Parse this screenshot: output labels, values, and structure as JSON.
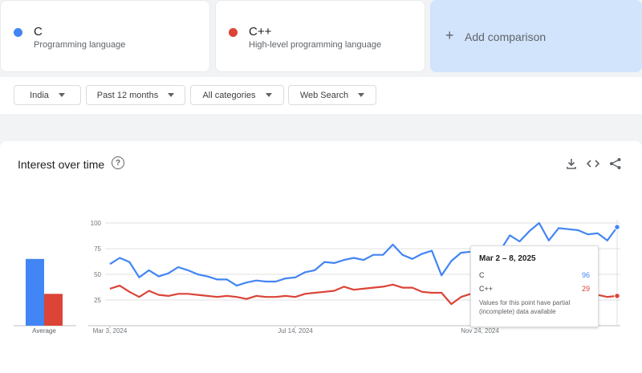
{
  "terms": [
    {
      "name": "C",
      "subtitle": "Programming language",
      "color": "#4285f4"
    },
    {
      "name": "C++",
      "subtitle": "High-level programming language",
      "color": "#db4437"
    }
  ],
  "add_comparison": {
    "icon": "+",
    "label": "Add comparison"
  },
  "filters": {
    "region": "India",
    "period": "Past 12 months",
    "category": "All categories",
    "search_type": "Web Search"
  },
  "panel": {
    "title": "Interest over time",
    "help_icon": "?",
    "tools": [
      "download-icon",
      "embed-icon",
      "share-icon"
    ]
  },
  "tooltip": {
    "date": "Mar 2 – 8, 2025",
    "rows": [
      {
        "term": "C",
        "value": "96",
        "color": "#4285f4"
      },
      {
        "term": "C++",
        "value": "29",
        "color": "#db4437"
      }
    ],
    "note": "Values for this point have partial (incomplete) data available"
  },
  "chart_data": {
    "type": "line",
    "title": "Interest over time",
    "xlabel": "",
    "ylabel": "",
    "ylim": [
      0,
      100
    ],
    "yticks": [
      "100",
      "75",
      "50",
      "25"
    ],
    "xtick_labels": [
      "Mar 3, 2024",
      "Jul 14, 2024",
      "Nov 24, 2024"
    ],
    "average_label": "Average",
    "averages": [
      {
        "name": "C",
        "value": 65,
        "color": "#4285f4"
      },
      {
        "name": "C++",
        "value": 31,
        "color": "#db4437"
      }
    ],
    "series": [
      {
        "name": "C",
        "color": "#4285f4",
        "values": [
          60,
          66,
          62,
          47,
          54,
          48,
          51,
          57,
          54,
          50,
          48,
          45,
          45,
          39,
          42,
          44,
          43,
          43,
          46,
          47,
          52,
          54,
          62,
          61,
          64,
          66,
          64,
          69,
          69,
          79,
          69,
          65,
          70,
          73,
          49,
          63,
          71,
          72,
          72,
          72,
          73,
          88,
          82,
          92,
          100,
          83,
          95,
          94,
          93,
          89,
          90,
          83,
          96
        ]
      },
      {
        "name": "C++",
        "color": "#db4437",
        "values": [
          36,
          39,
          33,
          28,
          34,
          30,
          29,
          31,
          31,
          30,
          29,
          28,
          29,
          28,
          26,
          29,
          28,
          28,
          29,
          28,
          31,
          32,
          33,
          34,
          38,
          35,
          36,
          37,
          38,
          40,
          37,
          37,
          33,
          32,
          32,
          21,
          28,
          31,
          28,
          28,
          29,
          29,
          30,
          29,
          31,
          28,
          29,
          31,
          30,
          28,
          30,
          28,
          29
        ]
      }
    ]
  }
}
